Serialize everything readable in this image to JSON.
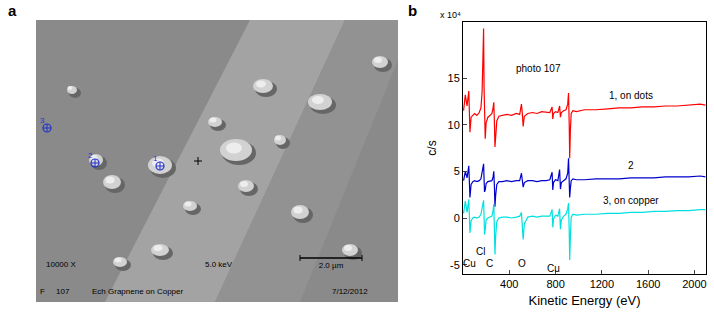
{
  "image_panel": {
    "panel_label": "a",
    "markers": [
      "3",
      "2",
      "1"
    ],
    "info": {
      "magnification": "10000 X",
      "voltage": "5.0 keV",
      "scale_bar": "2.0 µm",
      "frame": "F",
      "photo": "107",
      "description": "Ech Grapnene on Copper",
      "date": "7/12/2012"
    }
  },
  "chart_data": {
    "type": "line",
    "panel_label": "b",
    "xlabel": "Kinetic Energy (eV)",
    "ylabel": "c/s",
    "ylabel_scale": "x 10⁴",
    "xlim": [
      0,
      2100
    ],
    "xticks": [
      400,
      800,
      1200,
      1600,
      2000
    ],
    "ylim": [
      -6,
      21
    ],
    "yticks": [
      -5,
      0,
      5,
      10,
      15
    ],
    "grid": false,
    "x": [
      5,
      20,
      35,
      50,
      60,
      70,
      85,
      100,
      120,
      140,
      155,
      165,
      172,
      178,
      182,
      186,
      192,
      200,
      215,
      235,
      250,
      260,
      266,
      272,
      276,
      282,
      292,
      310,
      340,
      380,
      420,
      460,
      490,
      505,
      512,
      520,
      530,
      560,
      600,
      640,
      680,
      720,
      750,
      770,
      776,
      782,
      800,
      820,
      835,
      842,
      850,
      870,
      890,
      905,
      912,
      918,
      922,
      928,
      935,
      950,
      980,
      1050,
      1150,
      1250,
      1350,
      1450,
      1550,
      1650,
      1750,
      1850,
      1950,
      2050,
      2095
    ],
    "series": [
      {
        "name": "1, on dots",
        "color": "#ff0000",
        "values": [
          11.5,
          13.2,
          12.0,
          13.6,
          9.2,
          10.8,
          11.0,
          11.2,
          11.0,
          11.3,
          11.8,
          13.5,
          17.0,
          20.3,
          14.0,
          8.8,
          8.5,
          10.2,
          10.8,
          11.0,
          11.2,
          11.8,
          12.4,
          10.0,
          7.6,
          8.6,
          10.4,
          10.9,
          11.0,
          11.1,
          11.0,
          11.2,
          11.1,
          12.2,
          11.3,
          9.8,
          10.9,
          11.2,
          11.3,
          11.2,
          11.4,
          11.3,
          11.3,
          11.9,
          10.6,
          11.2,
          11.4,
          11.3,
          12.0,
          10.8,
          11.3,
          11.5,
          11.6,
          12.2,
          13.4,
          10.0,
          6.4,
          9.4,
          11.2,
          11.5,
          11.4,
          11.6,
          11.6,
          11.7,
          11.8,
          11.8,
          11.9,
          11.9,
          12.0,
          12.0,
          12.1,
          12.2,
          12.1
        ]
      },
      {
        "name": "2",
        "color": "#0000cc",
        "values": [
          4.0,
          5.0,
          4.3,
          5.6,
          2.2,
          3.6,
          3.9,
          4.0,
          3.9,
          4.0,
          4.2,
          4.8,
          5.4,
          5.8,
          4.2,
          2.8,
          3.0,
          3.7,
          3.9,
          4.0,
          4.0,
          4.4,
          5.0,
          3.2,
          1.2,
          2.4,
          3.6,
          3.9,
          3.9,
          4.0,
          3.9,
          4.0,
          4.0,
          4.8,
          4.0,
          3.3,
          3.8,
          4.0,
          4.0,
          3.9,
          4.0,
          4.0,
          4.1,
          4.9,
          3.0,
          3.8,
          4.1,
          4.0,
          5.2,
          3.1,
          3.8,
          4.0,
          4.2,
          4.8,
          6.4,
          3.8,
          2.2,
          3.2,
          4.0,
          4.2,
          4.1,
          4.1,
          4.2,
          4.2,
          4.2,
          4.3,
          4.3,
          4.3,
          4.4,
          4.4,
          4.4,
          4.5,
          4.4
        ]
      },
      {
        "name": "3, on copper",
        "color": "#00e0e0",
        "values": [
          0.5,
          1.8,
          0.6,
          2.0,
          -1.6,
          -0.3,
          0.0,
          0.1,
          0.0,
          0.1,
          0.4,
          1.0,
          1.6,
          1.9,
          0.2,
          -1.8,
          -1.2,
          -0.2,
          0.0,
          0.1,
          0.2,
          0.8,
          1.5,
          -1.5,
          -3.9,
          -2.0,
          -0.4,
          0.0,
          0.1,
          0.1,
          0.0,
          0.1,
          0.2,
          0.6,
          -0.8,
          -2.3,
          -0.6,
          0.1,
          0.2,
          0.1,
          0.2,
          0.2,
          0.2,
          0.9,
          -1.0,
          -0.1,
          0.3,
          0.2,
          1.0,
          -1.2,
          -0.2,
          0.2,
          0.4,
          1.0,
          1.6,
          -1.5,
          -4.5,
          -2.0,
          0.1,
          0.4,
          0.3,
          0.4,
          0.4,
          0.5,
          0.5,
          0.6,
          0.6,
          0.7,
          0.7,
          0.8,
          0.8,
          0.9,
          0.9
        ]
      }
    ],
    "annotations": [
      {
        "text": "photo 107",
        "x": 650,
        "y": 16
      },
      {
        "text": "Cu",
        "x": 55,
        "y": -4.9
      },
      {
        "text": "Cl",
        "x": 150,
        "y": -3.6
      },
      {
        "text": "C",
        "x": 230,
        "y": -4.9
      },
      {
        "text": "O",
        "x": 510,
        "y": -4.9
      },
      {
        "text": "Cu",
        "x": 780,
        "y": -5.4
      }
    ]
  }
}
